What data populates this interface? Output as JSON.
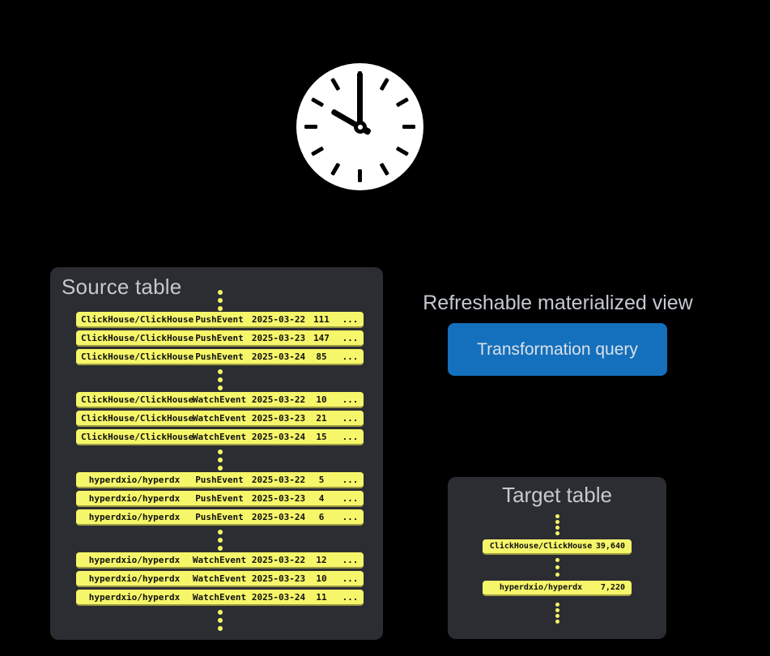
{
  "clock": {
    "time": "10:00"
  },
  "source_table": {
    "title": "Source table",
    "groups": [
      {
        "rows": [
          {
            "repo": "ClickHouse/ClickHouse",
            "event": "PushEvent",
            "date": "2025-03-22",
            "count": "111",
            "more": "..."
          },
          {
            "repo": "ClickHouse/ClickHouse",
            "event": "PushEvent",
            "date": "2025-03-23",
            "count": "147",
            "more": "..."
          },
          {
            "repo": "ClickHouse/ClickHouse",
            "event": "PushEvent",
            "date": "2025-03-24",
            "count": "85",
            "more": "..."
          }
        ]
      },
      {
        "rows": [
          {
            "repo": "ClickHouse/ClickHouse",
            "event": "WatchEvent",
            "date": "2025-03-22",
            "count": "10",
            "more": "..."
          },
          {
            "repo": "ClickHouse/ClickHouse",
            "event": "WatchEvent",
            "date": "2025-03-23",
            "count": "21",
            "more": "..."
          },
          {
            "repo": "ClickHouse/ClickHouse",
            "event": "WatchEvent",
            "date": "2025-03-24",
            "count": "15",
            "more": "..."
          }
        ]
      },
      {
        "rows": [
          {
            "repo": "hyperdxio/hyperdx",
            "event": "PushEvent",
            "date": "2025-03-22",
            "count": "5",
            "more": "..."
          },
          {
            "repo": "hyperdxio/hyperdx",
            "event": "PushEvent",
            "date": "2025-03-23",
            "count": "4",
            "more": "..."
          },
          {
            "repo": "hyperdxio/hyperdx",
            "event": "PushEvent",
            "date": "2025-03-24",
            "count": "6",
            "more": "..."
          }
        ]
      },
      {
        "rows": [
          {
            "repo": "hyperdxio/hyperdx",
            "event": "WatchEvent",
            "date": "2025-03-22",
            "count": "12",
            "more": "..."
          },
          {
            "repo": "hyperdxio/hyperdx",
            "event": "WatchEvent",
            "date": "2025-03-23",
            "count": "10",
            "more": "..."
          },
          {
            "repo": "hyperdxio/hyperdx",
            "event": "WatchEvent",
            "date": "2025-03-24",
            "count": "11",
            "more": "..."
          }
        ]
      }
    ]
  },
  "materialized_view": {
    "label": "Refreshable materialized view",
    "button_label": "Transformation query"
  },
  "target_table": {
    "title": "Target table",
    "rows": [
      {
        "repo": "ClickHouse/ClickHouse",
        "value": "39,640"
      },
      {
        "repo": "hyperdxio/hyperdx",
        "value": "7,220"
      }
    ]
  },
  "colors": {
    "background": "#000000",
    "panel": "#2b2d32",
    "row_yellow": "#f6f66a",
    "row_yellow_edge": "#9d9d42",
    "title_text": "#c5c9cf",
    "button_blue": "#1470bd",
    "button_text": "#dbe0e5",
    "clock_face": "#ffffff",
    "clock_marks": "#000000"
  }
}
